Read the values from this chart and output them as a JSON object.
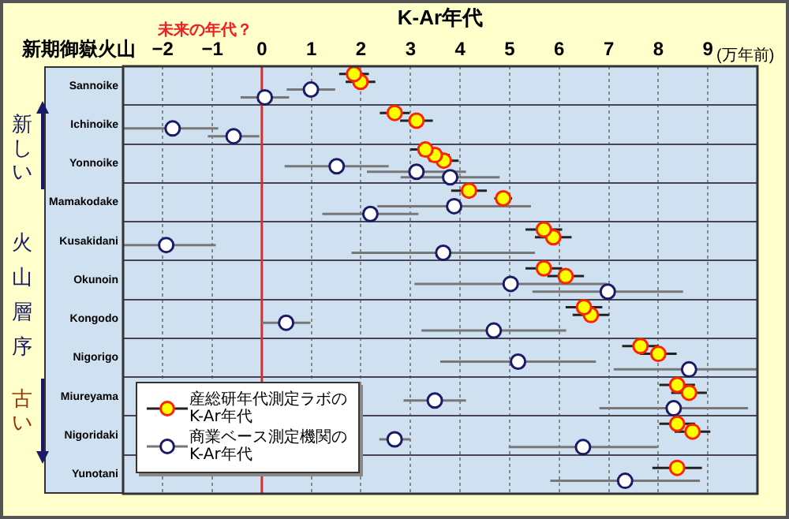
{
  "chart_data": {
    "type": "scatter",
    "orientation": "horizontal",
    "xlabel": "K-Ar年代",
    "ylabel": "新期御嶽火山",
    "annotations": [
      "未来の年代？",
      "(万年前)",
      "新しい",
      "火山層序",
      "古い"
    ],
    "categories": [
      "Sannoike",
      "Ichinoike",
      "Yonnoike",
      "Mamakodake",
      "Kusakidani",
      "Okunoin",
      "Kongodo",
      "Nigorigo",
      "Miureyama",
      "Nigoridaki",
      "Yunotani"
    ],
    "xlim": [
      -2.8,
      10
    ],
    "xticks": [
      {
        "value": -2,
        "label": "−2"
      },
      {
        "value": -1,
        "label": "−1"
      },
      0,
      1,
      2,
      3,
      4,
      5,
      6,
      7,
      8,
      9
    ],
    "ref_lines": [
      {
        "axis": "x",
        "value": 0,
        "color": "#cc3333"
      }
    ],
    "grid": true,
    "legend": "bottom left",
    "marker": "circle",
    "series": [
      {
        "name": "産総研年代測定ラボのK-Ar年代",
        "color": "#ffff00",
        "values": [
          1.86,
          2.68,
          3.3,
          4.18,
          5.69,
          5.69,
          6.5,
          7.64,
          8.38,
          8.38,
          8.38
        ],
        "errors": [
          0.3,
          0.3,
          0.3,
          0.36,
          0.37,
          0.37,
          0.37,
          0.37,
          0.36,
          0.36,
          0.5
        ]
      },
      {
        "color": "#ffff00",
        "values": [
          1.99,
          3.12,
          3.49,
          4.87,
          5.88,
          6.13,
          6.64,
          8.0,
          8.62,
          8.69,
          null
        ],
        "errors": [
          0.3,
          0.33,
          0.3,
          0.18,
          0.37,
          0.37,
          0.37,
          0.37,
          0.36,
          0.36,
          null
        ]
      },
      {
        "color": "#ffff00",
        "values": [
          null,
          null,
          3.67,
          null,
          null,
          null,
          null,
          null,
          null,
          null,
          null
        ],
        "errors": [
          null,
          null,
          0.3,
          null,
          null,
          null,
          null,
          null,
          null,
          null,
          null
        ]
      },
      {
        "name": "商業ベース測定機関のK-Ar年代",
        "color": "#ffffff",
        "values": [
          0.99,
          -1.8,
          1.51,
          3.88,
          -1.93,
          5.02,
          0.49,
          5.17,
          3.49,
          2.68,
          7.33
        ],
        "errors": [
          0.49,
          [
            -2.8,
            -0.88
          ],
          1.05,
          1.55,
          [
            -2.8,
            -0.93
          ],
          1.94,
          0.49,
          1.57,
          0.63,
          0.31,
          1.51
        ]
      },
      {
        "color": "#ffffff",
        "values": [
          0.06,
          -0.57,
          3.12,
          2.19,
          3.66,
          6.98,
          4.68,
          8.62,
          8.31,
          6.48,
          null
        ],
        "errors": [
          0.49,
          0.52,
          1.0,
          0.97,
          1.85,
          1.52,
          1.46,
          [
            7.1,
            10
          ],
          1.5,
          1.5,
          null
        ]
      },
      {
        "color": "#ffffff",
        "values": [
          null,
          null,
          3.8,
          null,
          null,
          null,
          null,
          null,
          null,
          null,
          null
        ],
        "errors": [
          null,
          null,
          1.0,
          null,
          null,
          null,
          null,
          null,
          null,
          null,
          null
        ]
      }
    ]
  }
}
